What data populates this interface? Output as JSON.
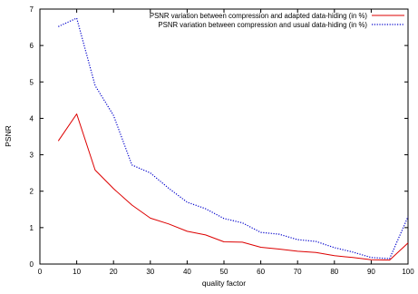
{
  "chart_data": {
    "type": "line",
    "xlabel": "quality factor",
    "ylabel": "PSNR",
    "xlim": [
      0,
      100
    ],
    "ylim": [
      0,
      7
    ],
    "x_ticks": [
      "0",
      "10",
      "20",
      "30",
      "40",
      "50",
      "60",
      "70",
      "80",
      "90",
      "100"
    ],
    "y_ticks": [
      "0",
      "1",
      "2",
      "3",
      "4",
      "5",
      "6",
      "7"
    ],
    "grid": false,
    "legend_position": "top-right",
    "series": [
      {
        "name": "PSNR variation between compression and adapted data-hiding (in %)",
        "color": "#dd0000",
        "style": "solid",
        "x": [
          5,
          10,
          15,
          20,
          25,
          30,
          35,
          40,
          45,
          50,
          55,
          60,
          65,
          70,
          75,
          80,
          85,
          90,
          95,
          100
        ],
        "y": [
          3.38,
          4.12,
          2.58,
          2.07,
          1.62,
          1.26,
          1.1,
          0.9,
          0.8,
          0.61,
          0.6,
          0.46,
          0.41,
          0.35,
          0.32,
          0.23,
          0.18,
          0.12,
          0.11,
          0.58
        ]
      },
      {
        "name": "PSNR variation between compression and usual data-hiding (in %)",
        "color": "#0000cc",
        "style": "dotted",
        "x": [
          5,
          10,
          15,
          20,
          25,
          30,
          35,
          40,
          45,
          50,
          55,
          60,
          65,
          70,
          75,
          80,
          85,
          90,
          95,
          100
        ],
        "y": [
          6.52,
          6.75,
          4.9,
          4.08,
          2.72,
          2.5,
          2.08,
          1.7,
          1.52,
          1.25,
          1.13,
          0.87,
          0.82,
          0.67,
          0.62,
          0.45,
          0.33,
          0.18,
          0.15,
          1.3
        ]
      }
    ]
  }
}
